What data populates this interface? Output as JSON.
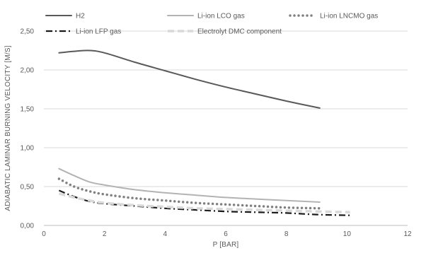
{
  "chart_data": {
    "type": "line",
    "title": "",
    "xlabel": "P [BAR]",
    "ylabel": "ADIABATIC LAMINAR BURNING VELOCITY [M/S]",
    "xlim": [
      0,
      12
    ],
    "ylim": [
      0,
      2.5
    ],
    "x_ticks": [
      "0",
      "2",
      "4",
      "6",
      "8",
      "10",
      "12"
    ],
    "y_ticks": [
      "0,00",
      "0,50",
      "1,00",
      "1,50",
      "2,00",
      "2,50"
    ],
    "grid": "horizontal",
    "legend_position": "top",
    "series": [
      {
        "name": "H2",
        "color": "#595959",
        "style": "solid",
        "x": [
          0.5,
          1,
          1.5,
          2,
          3,
          4,
          5,
          6,
          7,
          8,
          9.1
        ],
        "y": [
          2.22,
          2.24,
          2.25,
          2.22,
          2.1,
          1.99,
          1.88,
          1.78,
          1.69,
          1.6,
          1.51
        ]
      },
      {
        "name": "Li-ion LCO gas",
        "color": "#b3b3b3",
        "style": "solid",
        "x": [
          0.5,
          1,
          1.5,
          2,
          3,
          4,
          5,
          6,
          7,
          8,
          9.1
        ],
        "y": [
          0.73,
          0.64,
          0.56,
          0.52,
          0.46,
          0.42,
          0.39,
          0.36,
          0.34,
          0.32,
          0.3
        ]
      },
      {
        "name": "Li-ion LNCMO gas",
        "color": "#808080",
        "style": "dotted",
        "x": [
          0.5,
          1,
          1.5,
          2,
          3,
          4,
          5,
          6,
          7,
          8,
          9.1
        ],
        "y": [
          0.6,
          0.5,
          0.44,
          0.4,
          0.35,
          0.32,
          0.29,
          0.27,
          0.25,
          0.23,
          0.22
        ]
      },
      {
        "name": "Li-ion LFP gas",
        "color": "#1a1a1a",
        "style": "dashdot",
        "x": [
          0.5,
          1,
          1.5,
          2,
          3,
          4,
          5,
          6,
          7,
          8,
          9,
          10.1
        ],
        "y": [
          0.45,
          0.37,
          0.31,
          0.28,
          0.25,
          0.22,
          0.2,
          0.18,
          0.17,
          0.16,
          0.14,
          0.13
        ]
      },
      {
        "name": "Electrolyt DMC component",
        "color": "#d9d9d9",
        "style": "dashed",
        "x": [
          0.5,
          1,
          1.5,
          2,
          3,
          4,
          5,
          6,
          7,
          8,
          9,
          10.1
        ],
        "y": [
          0.41,
          0.36,
          0.32,
          0.29,
          0.26,
          0.24,
          0.22,
          0.21,
          0.2,
          0.19,
          0.18,
          0.17
        ]
      }
    ]
  }
}
